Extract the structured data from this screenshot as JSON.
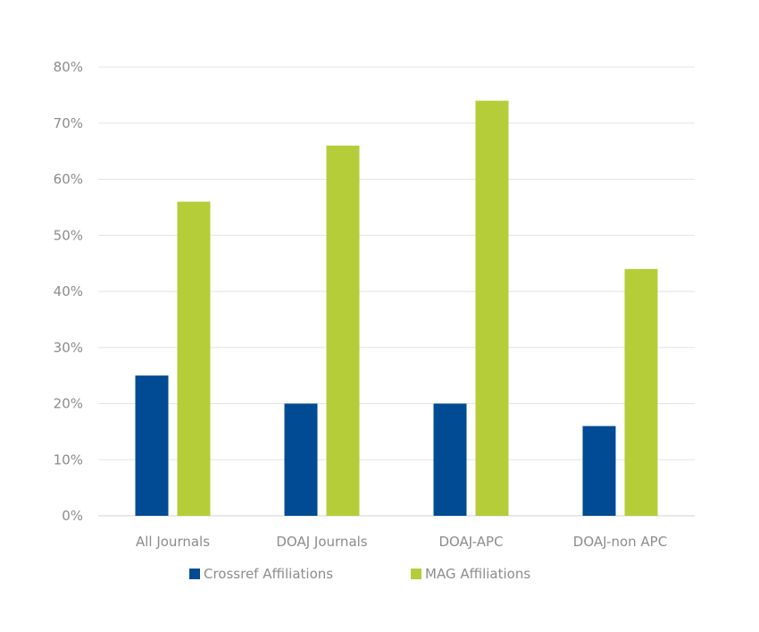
{
  "chart_data": {
    "type": "bar",
    "categories": [
      "All Journals",
      "DOAJ Journals",
      "DOAJ-APC",
      "DOAJ-non APC"
    ],
    "series": [
      {
        "name": "Crossref Affiliations",
        "color": "#004b93",
        "values": [
          25,
          20,
          20,
          16
        ]
      },
      {
        "name": "MAG Affiliations",
        "color": "#b5cd38",
        "values": [
          56,
          66,
          74,
          44
        ]
      }
    ],
    "yticks": [
      "0%",
      "10%",
      "20%",
      "30%",
      "40%",
      "50%",
      "60%",
      "70%",
      "80%"
    ],
    "ylim": [
      0,
      80
    ],
    "unit": "%",
    "grid": true,
    "legend_position": "bottom"
  }
}
